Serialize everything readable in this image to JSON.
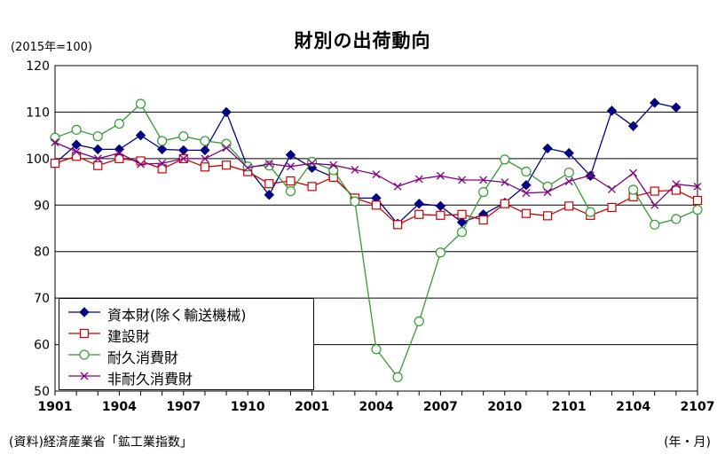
{
  "title": "財別の出荷動向",
  "unit_label": "(2015年=100)",
  "source_label": "(資料)経済産業省「鉱工業指数」",
  "period_label": "(年・月)",
  "chart_data": {
    "type": "line",
    "title": "財別の出荷動向",
    "ylabel": "(2015年=100)",
    "xlabel": "(年・月)",
    "ylim": [
      50,
      120
    ],
    "yticks": [
      50,
      60,
      70,
      80,
      90,
      100,
      110,
      120
    ],
    "grid": true,
    "legend_position": "bottom-left",
    "x": [
      "1901",
      "1902",
      "1903",
      "1904",
      "1905",
      "1906",
      "1907",
      "1908",
      "1909",
      "1910",
      "1911",
      "1912",
      "2001",
      "2002",
      "2003",
      "2004",
      "2005",
      "2006",
      "2007",
      "2008",
      "2009",
      "2010",
      "2011",
      "2012",
      "2101",
      "2102",
      "2103",
      "2104",
      "2105",
      "2106",
      "2107"
    ],
    "x_tick_labels": [
      "1901",
      "1904",
      "1907",
      "1910",
      "2001",
      "2004",
      "2007",
      "2010",
      "2101",
      "2104",
      "2107"
    ],
    "series": [
      {
        "name": "資本財(除く輸送機械)",
        "color": "#000080",
        "marker": "diamond-filled",
        "values": [
          99.0,
          103.0,
          102.0,
          102.0,
          105.0,
          102.0,
          101.8,
          101.8,
          110.0,
          98.0,
          92.2,
          100.8,
          98.0,
          96.0,
          91.5,
          91.5,
          86.0,
          90.3,
          89.8,
          86.3,
          88.0,
          90.5,
          94.3,
          102.2,
          101.2,
          96.3,
          110.3,
          107.0,
          112.0,
          111.0,
          null
        ]
      },
      {
        "name": "建設財",
        "color": "#cc0000",
        "marker": "square-open",
        "values": [
          99.0,
          100.5,
          98.5,
          100.0,
          99.5,
          97.8,
          100.0,
          98.2,
          98.6,
          97.2,
          94.6,
          95.2,
          94.0,
          96.0,
          91.5,
          90.0,
          85.8,
          88.0,
          87.8,
          88.0,
          86.8,
          90.3,
          88.2,
          87.7,
          89.8,
          87.8,
          89.5,
          91.8,
          93.0,
          93.2,
          91.0
        ]
      },
      {
        "name": "耐久消費財",
        "color": "#339933",
        "marker": "circle-open",
        "values": [
          104.5,
          106.2,
          104.8,
          107.5,
          111.8,
          103.8,
          104.8,
          103.8,
          103.2,
          98.3,
          98.5,
          93.0,
          99.3,
          97.5,
          90.8,
          59.0,
          53.0,
          65.0,
          79.8,
          84.2,
          92.8,
          99.8,
          97.2,
          94.0,
          97.0,
          88.5,
          null,
          93.3,
          85.8,
          87.0,
          89.0
        ]
      },
      {
        "name": "非耐久消費財",
        "color": "#800080",
        "marker": "x",
        "values": [
          103.5,
          101.5,
          100.0,
          101.2,
          98.8,
          99.0,
          100.0,
          100.0,
          102.3,
          98.0,
          98.9,
          98.3,
          99.0,
          98.6,
          97.6,
          96.6,
          94.0,
          95.6,
          96.3,
          95.4,
          95.4,
          94.9,
          92.6,
          92.8,
          95.1,
          96.4,
          93.4,
          96.9,
          90.0,
          94.5,
          94.0
        ]
      }
    ]
  }
}
